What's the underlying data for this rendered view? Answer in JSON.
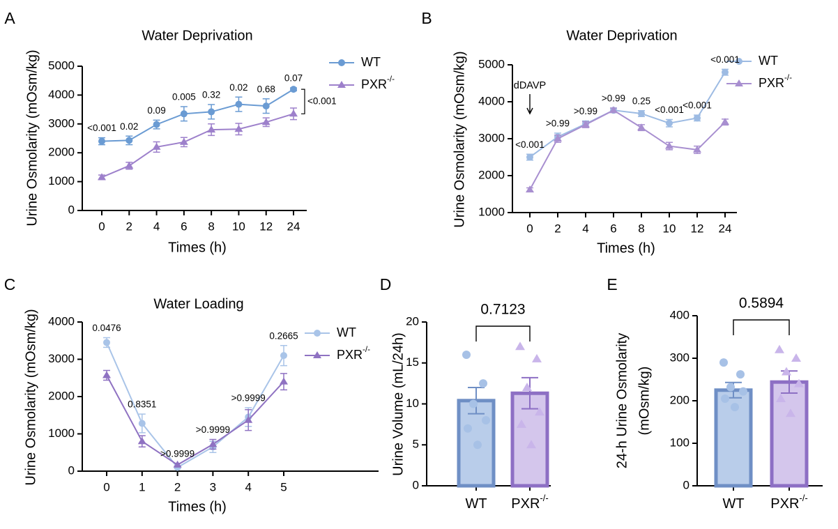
{
  "chart_data": [
    {
      "type": "line",
      "panel": "A",
      "title": "Water Deprivation",
      "xlabel": "Times (h)",
      "ylabel": "Urine Osmolarity (mOsm/kg)",
      "categories": [
        "0",
        "2",
        "4",
        "6",
        "8",
        "10",
        "12",
        "24"
      ],
      "ylim": [
        0,
        5000
      ],
      "yticks": [
        0,
        1000,
        2000,
        3000,
        4000,
        5000
      ],
      "series": [
        {
          "name": "WT",
          "color": "#6a9bd3",
          "marker": "circle",
          "values": [
            2400,
            2430,
            2980,
            3350,
            3420,
            3680,
            3620,
            4200
          ],
          "errors": [
            120,
            150,
            150,
            250,
            250,
            250,
            250,
            50
          ]
        },
        {
          "name": "PXR",
          "name_sup": "-/-",
          "color": "#9d80cb",
          "marker": "triangle",
          "values": [
            1150,
            1550,
            2200,
            2370,
            2800,
            2820,
            3060,
            3350
          ],
          "errors": [
            80,
            120,
            180,
            160,
            200,
            200,
            150,
            200
          ]
        }
      ],
      "p_values": [
        "<0.001",
        "0.02",
        "0.09",
        "0.005",
        "0.32",
        "0.02",
        "0.68",
        "0.07"
      ],
      "bracket_label": "<0.001"
    },
    {
      "type": "line",
      "panel": "B",
      "title": "Water Deprivation",
      "xlabel": "Times (h)",
      "ylabel": "Urine Osmolarity (mOsm/kg)",
      "categories": [
        "0",
        "2",
        "4",
        "6",
        "8",
        "10",
        "12",
        "24"
      ],
      "ylim": [
        1000,
        5000
      ],
      "yticks": [
        1000,
        2000,
        3000,
        4000,
        5000
      ],
      "series": [
        {
          "name": "WT",
          "color": "#9dbbe3",
          "marker": "circle",
          "values": [
            2500,
            3050,
            3400,
            3770,
            3680,
            3420,
            3560,
            4800
          ],
          "errors": [
            80,
            100,
            80,
            60,
            80,
            100,
            80,
            80
          ]
        },
        {
          "name": "PXR",
          "name_sup": "-/-",
          "color": "#a88fd0",
          "marker": "triangle",
          "values": [
            1620,
            3000,
            3380,
            3770,
            3300,
            2800,
            2700,
            3450
          ],
          "errors": [
            50,
            100,
            80,
            60,
            80,
            100,
            100,
            80
          ]
        }
      ],
      "p_values": [
        "<0.001",
        ">0.99",
        ">0.99",
        ">0.99",
        "0.25",
        "<0.001",
        "<0.001",
        "<0.001"
      ],
      "annotation": "dDAVP"
    },
    {
      "type": "line",
      "panel": "C",
      "title": "Water Loading",
      "xlabel": "Times (h)",
      "ylabel": "Urine Osmolarity (mOsm/kg)",
      "categories": [
        "0",
        "1",
        "2",
        "3",
        "4",
        "5"
      ],
      "ylim": [
        0,
        4000
      ],
      "yticks": [
        0,
        1000,
        2000,
        3000,
        4000
      ],
      "series": [
        {
          "name": "WT",
          "color": "#a9c4e8",
          "marker": "circle",
          "values": [
            3450,
            1280,
            100,
            650,
            1450,
            3100
          ],
          "errors": [
            130,
            250,
            40,
            150,
            250,
            270
          ]
        },
        {
          "name": "PXR",
          "name_sup": "-/-",
          "color": "#8f72c2",
          "marker": "triangle",
          "values": [
            2570,
            800,
            170,
            720,
            1370,
            2400
          ],
          "errors": [
            130,
            150,
            40,
            130,
            280,
            220
          ]
        }
      ],
      "p_values": [
        "0.0476",
        "0.8351",
        ">0.9999",
        ">0.9999",
        ">0.9999",
        "0.2665"
      ]
    },
    {
      "type": "bar",
      "panel": "D",
      "ylabel": "Urine Volume (mL/24h)",
      "categories": [
        {
          "label": "WT"
        },
        {
          "label": "PXR",
          "sup": "-/-"
        }
      ],
      "values": [
        10.4,
        11.3
      ],
      "errors": [
        1.6,
        1.9
      ],
      "fill_colors": [
        "#b9cdea",
        "#d4c6ec"
      ],
      "edge_colors": [
        "#6f8fc5",
        "#8d6fc4"
      ],
      "point_colors": [
        "#a7c1e6",
        "#c9b5ea"
      ],
      "points": [
        [
          16,
          12.5,
          10,
          8,
          7,
          5
        ],
        [
          17,
          15.5,
          12,
          9,
          7.5,
          5
        ]
      ],
      "ylim": [
        0,
        20
      ],
      "yticks": [
        0,
        5,
        10,
        15,
        20
      ],
      "p_value": "0.7123"
    },
    {
      "type": "bar",
      "panel": "E",
      "ylabel": [
        "24-h Urine Osmolarity",
        "(mOsm/kg)"
      ],
      "categories": [
        {
          "label": "WT"
        },
        {
          "label": "PXR",
          "sup": "-/-"
        }
      ],
      "values": [
        225,
        244
      ],
      "errors": [
        18,
        26
      ],
      "fill_colors": [
        "#b9cdea",
        "#d4c6ec"
      ],
      "edge_colors": [
        "#6f8fc5",
        "#8d6fc4"
      ],
      "point_colors": [
        "#a7c1e6",
        "#c9b5ea"
      ],
      "points": [
        [
          290,
          262,
          232,
          222,
          205,
          185
        ],
        [
          320,
          300,
          268,
          240,
          205,
          170
        ]
      ],
      "ylim": [
        0,
        400
      ],
      "yticks": [
        0,
        100,
        200,
        300,
        400
      ],
      "p_value": "0.5894"
    }
  ]
}
